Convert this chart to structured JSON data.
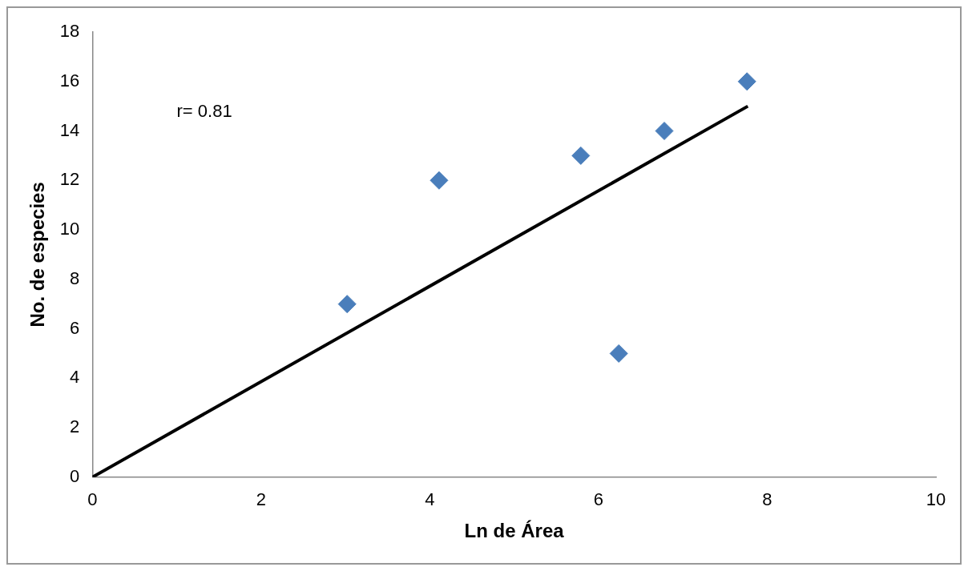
{
  "chart_data": {
    "type": "scatter",
    "xlabel": "Ln de Área",
    "ylabel": "No. de especies",
    "annotations": [
      "r= 0.81"
    ],
    "x": [
      3.02,
      4.11,
      5.79,
      6.24,
      6.78,
      7.76
    ],
    "series": [
      {
        "color": "#4a7ebb",
        "marker": "diamond",
        "values": [
          7,
          12,
          13,
          5,
          14,
          16
        ]
      },
      {
        "type": "line",
        "color": "#000000",
        "x": [
          0,
          7.77
        ],
        "values": [
          0,
          15
        ],
        "marker": "none"
      }
    ],
    "xlim": [
      0,
      10
    ],
    "xticks": [
      0,
      2,
      4,
      6,
      8,
      10
    ],
    "ylim": [
      0,
      18
    ],
    "yticks": [
      0,
      2,
      4,
      6,
      8,
      10,
      12,
      14,
      16,
      18
    ],
    "grid": false,
    "legend": false
  }
}
